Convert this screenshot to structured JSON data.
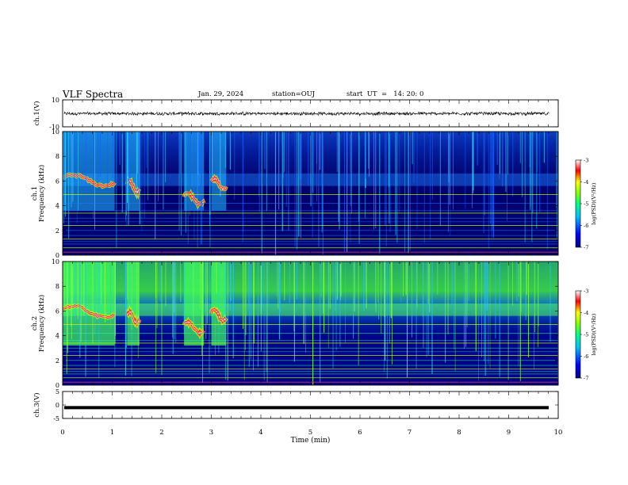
{
  "header": {
    "title": "VLF Spectra",
    "date": "Jan. 29, 2024",
    "station": "station=OUJ",
    "start_ut": "start  UT  =   14: 20: 0"
  },
  "chart_data": [
    {
      "type": "line",
      "panel": "ch1-waveform",
      "ylabel": "ch.1(V)",
      "ylim": [
        -10,
        10
      ],
      "yticks": [
        "10",
        "-10"
      ],
      "x": [
        0,
        10
      ],
      "note": "dense noise waveform, approx ±1 V around 0"
    },
    {
      "type": "heatmap",
      "panel": "ch1-spectrogram",
      "ylabel": "ch.1\nFrequency  (kHz)",
      "yticks": [
        "0",
        "2",
        "4",
        "6",
        "8",
        "10"
      ],
      "ylim": [
        0,
        10
      ],
      "xlim": [
        0,
        10
      ],
      "colorbar": {
        "label": "log(PSD)(V²/Hz)",
        "ticks": [
          "-3",
          "-4",
          "-5",
          "-6",
          "-7"
        ],
        "range": [
          -7,
          -3
        ]
      },
      "features": [
        {
          "t_start": 0.0,
          "t_end": 1.05,
          "freq_khz": 6.3,
          "level": -3.4
        },
        {
          "t_start": 1.3,
          "t_end": 1.55,
          "freq_khz": 5.8,
          "level": -3.8
        },
        {
          "t_start": 2.45,
          "t_end": 2.85,
          "freq_khz": 4.8,
          "level": -3.5
        },
        {
          "t_start": 3.0,
          "t_end": 3.3,
          "freq_khz": 6.0,
          "level": -3.9
        }
      ]
    },
    {
      "type": "heatmap",
      "panel": "ch2-spectrogram",
      "ylabel": "ch.2\nFrequency  (kHz)",
      "yticks": [
        "0",
        "2",
        "4",
        "6",
        "8",
        "10"
      ],
      "ylim": [
        0,
        10
      ],
      "xlim": [
        0,
        10
      ],
      "colorbar": {
        "label": "log(PSD)(V²/Hz)",
        "ticks": [
          "-3",
          "-4",
          "-5",
          "-6",
          "-7"
        ],
        "range": [
          -7,
          -3
        ]
      },
      "features": [
        {
          "t_start": 0.0,
          "t_end": 1.05,
          "freq_khz": 6.2,
          "level": -3.2
        },
        {
          "t_start": 1.3,
          "t_end": 1.55,
          "freq_khz": 5.7,
          "level": -3.5
        },
        {
          "t_start": 2.45,
          "t_end": 2.85,
          "freq_khz": 4.9,
          "level": -3.1
        },
        {
          "t_start": 3.0,
          "t_end": 3.3,
          "freq_khz": 5.9,
          "level": -3.6
        }
      ]
    },
    {
      "type": "line",
      "panel": "ch3-waveform",
      "ylabel": "ch.3(V)",
      "ylim": [
        -5,
        5
      ],
      "yticks": [
        "5",
        "0",
        "-5"
      ],
      "x": [
        0,
        10
      ],
      "note": "flat thick trace near -1 V"
    }
  ],
  "xaxis": {
    "label": "Time  (min)",
    "ticks": [
      "0",
      "1",
      "2",
      "3",
      "4",
      "5",
      "6",
      "7",
      "8",
      "9",
      "10"
    ],
    "range": [
      0,
      10
    ]
  },
  "colors": {
    "background": "#000066",
    "ink": "#000000"
  }
}
